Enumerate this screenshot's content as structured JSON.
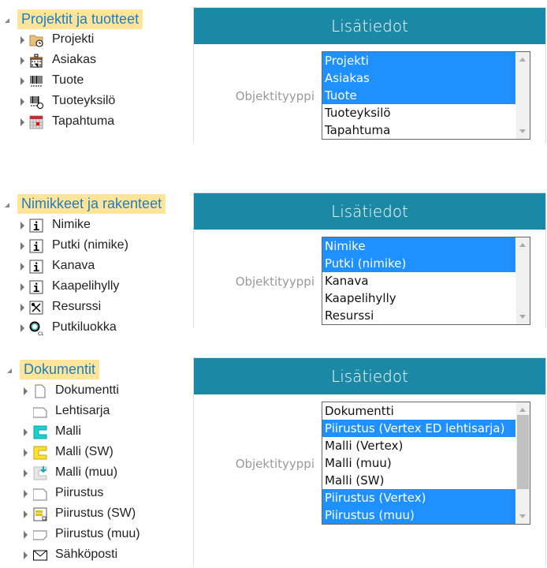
{
  "trees": [
    {
      "label": "Projektit ja tuotteet",
      "items": [
        {
          "label": "Projekti",
          "icon": "folder-clock-icon"
        },
        {
          "label": "Asiakas",
          "icon": "building-icon"
        },
        {
          "label": "Tuote",
          "icon": "barcode-icon"
        },
        {
          "label": "Tuoteyksilö",
          "icon": "barcode-clock-icon"
        },
        {
          "label": "Tapahtuma",
          "icon": "calendar-icon"
        }
      ]
    },
    {
      "label": "Nimikkeet ja rakenteet",
      "items": [
        {
          "label": "Nimike",
          "icon": "info-box-icon"
        },
        {
          "label": "Putki (nimike)",
          "icon": "info-box-icon"
        },
        {
          "label": "Kanava",
          "icon": "info-box-icon"
        },
        {
          "label": "Kaapelihylly",
          "icon": "info-box-icon"
        },
        {
          "label": "Resurssi",
          "icon": "tools-icon"
        },
        {
          "label": "Putkiluokka",
          "icon": "ring-cl-icon"
        }
      ]
    },
    {
      "label": "Dokumentit",
      "items": [
        {
          "label": "Dokumentti",
          "icon": "document-icon",
          "expandable": true
        },
        {
          "label": "Lehtisarja",
          "icon": "sheet-icon",
          "expandable": false
        },
        {
          "label": "Malli",
          "icon": "model-cyan-icon",
          "expandable": true
        },
        {
          "label": "Malli (SW)",
          "icon": "model-yellow-icon",
          "expandable": true
        },
        {
          "label": "Malli (muu)",
          "icon": "model-download-icon",
          "expandable": true
        },
        {
          "label": "Piirustus",
          "icon": "drawing-icon",
          "expandable": true
        },
        {
          "label": "Piirustus (SW)",
          "icon": "drawing-sw-icon",
          "expandable": true
        },
        {
          "label": "Piirustus (muu)",
          "icon": "drawing-other-icon",
          "expandable": true
        },
        {
          "label": "Sähköposti",
          "icon": "envelope-icon",
          "expandable": true
        }
      ]
    }
  ],
  "panels": [
    {
      "title": "Lisätiedot",
      "field_label": "Objektityyppi",
      "options": [
        {
          "label": "Projekti",
          "selected": true
        },
        {
          "label": "Asiakas",
          "selected": true
        },
        {
          "label": "Tuote",
          "selected": true
        },
        {
          "label": "Tuoteyksilö",
          "selected": false
        },
        {
          "label": "Tapahtuma",
          "selected": false
        }
      ]
    },
    {
      "title": "Lisätiedot",
      "field_label": "Objektityyppi",
      "options": [
        {
          "label": "Nimike",
          "selected": true
        },
        {
          "label": "Putki (nimike)",
          "selected": true
        },
        {
          "label": "Kanava",
          "selected": false
        },
        {
          "label": "Kaapelihylly",
          "selected": false
        },
        {
          "label": "Resurssi",
          "selected": false
        }
      ]
    },
    {
      "title": "Lisätiedot",
      "field_label": "Objektityyppi",
      "options": [
        {
          "label": "Dokumentti",
          "selected": false
        },
        {
          "label": "Piirustus (Vertex ED lehtisarja)",
          "selected": true
        },
        {
          "label": "Malli (Vertex)",
          "selected": false
        },
        {
          "label": "Malli (muu)",
          "selected": false
        },
        {
          "label": "Malli (SW)",
          "selected": false
        },
        {
          "label": "Piirustus (Vertex)",
          "selected": true
        },
        {
          "label": "Piirustus (muu)",
          "selected": true
        }
      ]
    }
  ],
  "colors": {
    "header": "#1b88a6",
    "selection": "#1e90ff",
    "group_highlight": "#ffe59a",
    "group_text": "#1f7ebf"
  }
}
